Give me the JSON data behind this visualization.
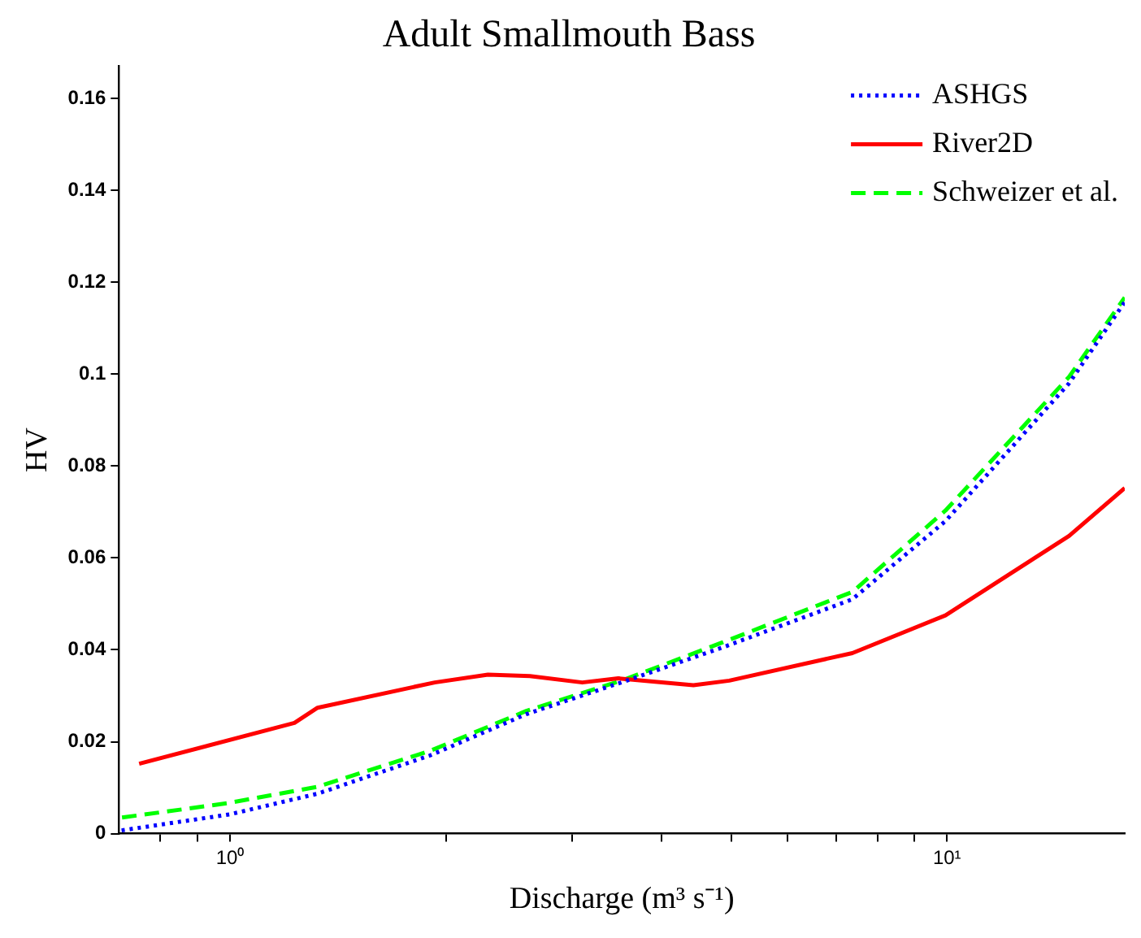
{
  "chart_data": {
    "type": "line",
    "title": "Adult Smallmouth Bass",
    "xlabel": "Discharge (m³ s⁻¹)",
    "ylabel": "HV",
    "log": "x",
    "xlim": [
      0.7,
      17.7
    ],
    "ylim": [
      0,
      0.167
    ],
    "xticks": [
      {
        "value": 0.8,
        "label": null
      },
      {
        "value": 0.9,
        "label": null
      },
      {
        "value": 1,
        "label": "10⁰"
      },
      {
        "value": 2,
        "label": null
      },
      {
        "value": 3,
        "label": null
      },
      {
        "value": 4,
        "label": null
      },
      {
        "value": 5,
        "label": null
      },
      {
        "value": 6,
        "label": null
      },
      {
        "value": 7,
        "label": null
      },
      {
        "value": 8,
        "label": null
      },
      {
        "value": 9,
        "label": null
      },
      {
        "value": 10,
        "label": "10¹"
      }
    ],
    "yticks": [
      0,
      0.02,
      0.04,
      0.06,
      0.08,
      0.1,
      0.12,
      0.14,
      0.16
    ],
    "grid": false,
    "legend": "top right",
    "marker": "none",
    "series": [
      {
        "name": "ASHGS",
        "color": "#0000ff",
        "line_style": "dotted",
        "x": [
          0.706,
          1,
          1.325,
          1.9,
          2.59,
          3.56,
          4.86,
          7.38,
          9.95,
          14.8,
          17.7
        ],
        "values": [
          0.0007,
          0.0042,
          0.0087,
          0.017,
          0.026,
          0.0332,
          0.0405,
          0.051,
          0.068,
          0.098,
          0.1157
        ]
      },
      {
        "name": "River2D",
        "color": "#ff0000",
        "line_style": "solid",
        "x": [
          0.747,
          1.23,
          1.325,
          1.93,
          2.29,
          2.62,
          3.1,
          3.48,
          4.43,
          4.97,
          7.38,
          9.95,
          14.8,
          17.7
        ],
        "values": [
          0.0152,
          0.0241,
          0.0274,
          0.0329,
          0.0346,
          0.0343,
          0.0329,
          0.0338,
          0.0323,
          0.0333,
          0.0393,
          0.0475,
          0.0648,
          0.0752
        ]
      },
      {
        "name": "Schweizer et al.",
        "color": "#00ff00",
        "line_style": "dashed",
        "x": [
          0.707,
          0.99,
          1.325,
          1.9,
          2.59,
          3.56,
          4.86,
          7.38,
          9.95,
          14.8,
          17.7
        ],
        "values": [
          0.0035,
          0.0066,
          0.0102,
          0.018,
          0.0267,
          0.0336,
          0.0416,
          0.0526,
          0.0703,
          0.0994,
          0.1167
        ]
      }
    ]
  }
}
